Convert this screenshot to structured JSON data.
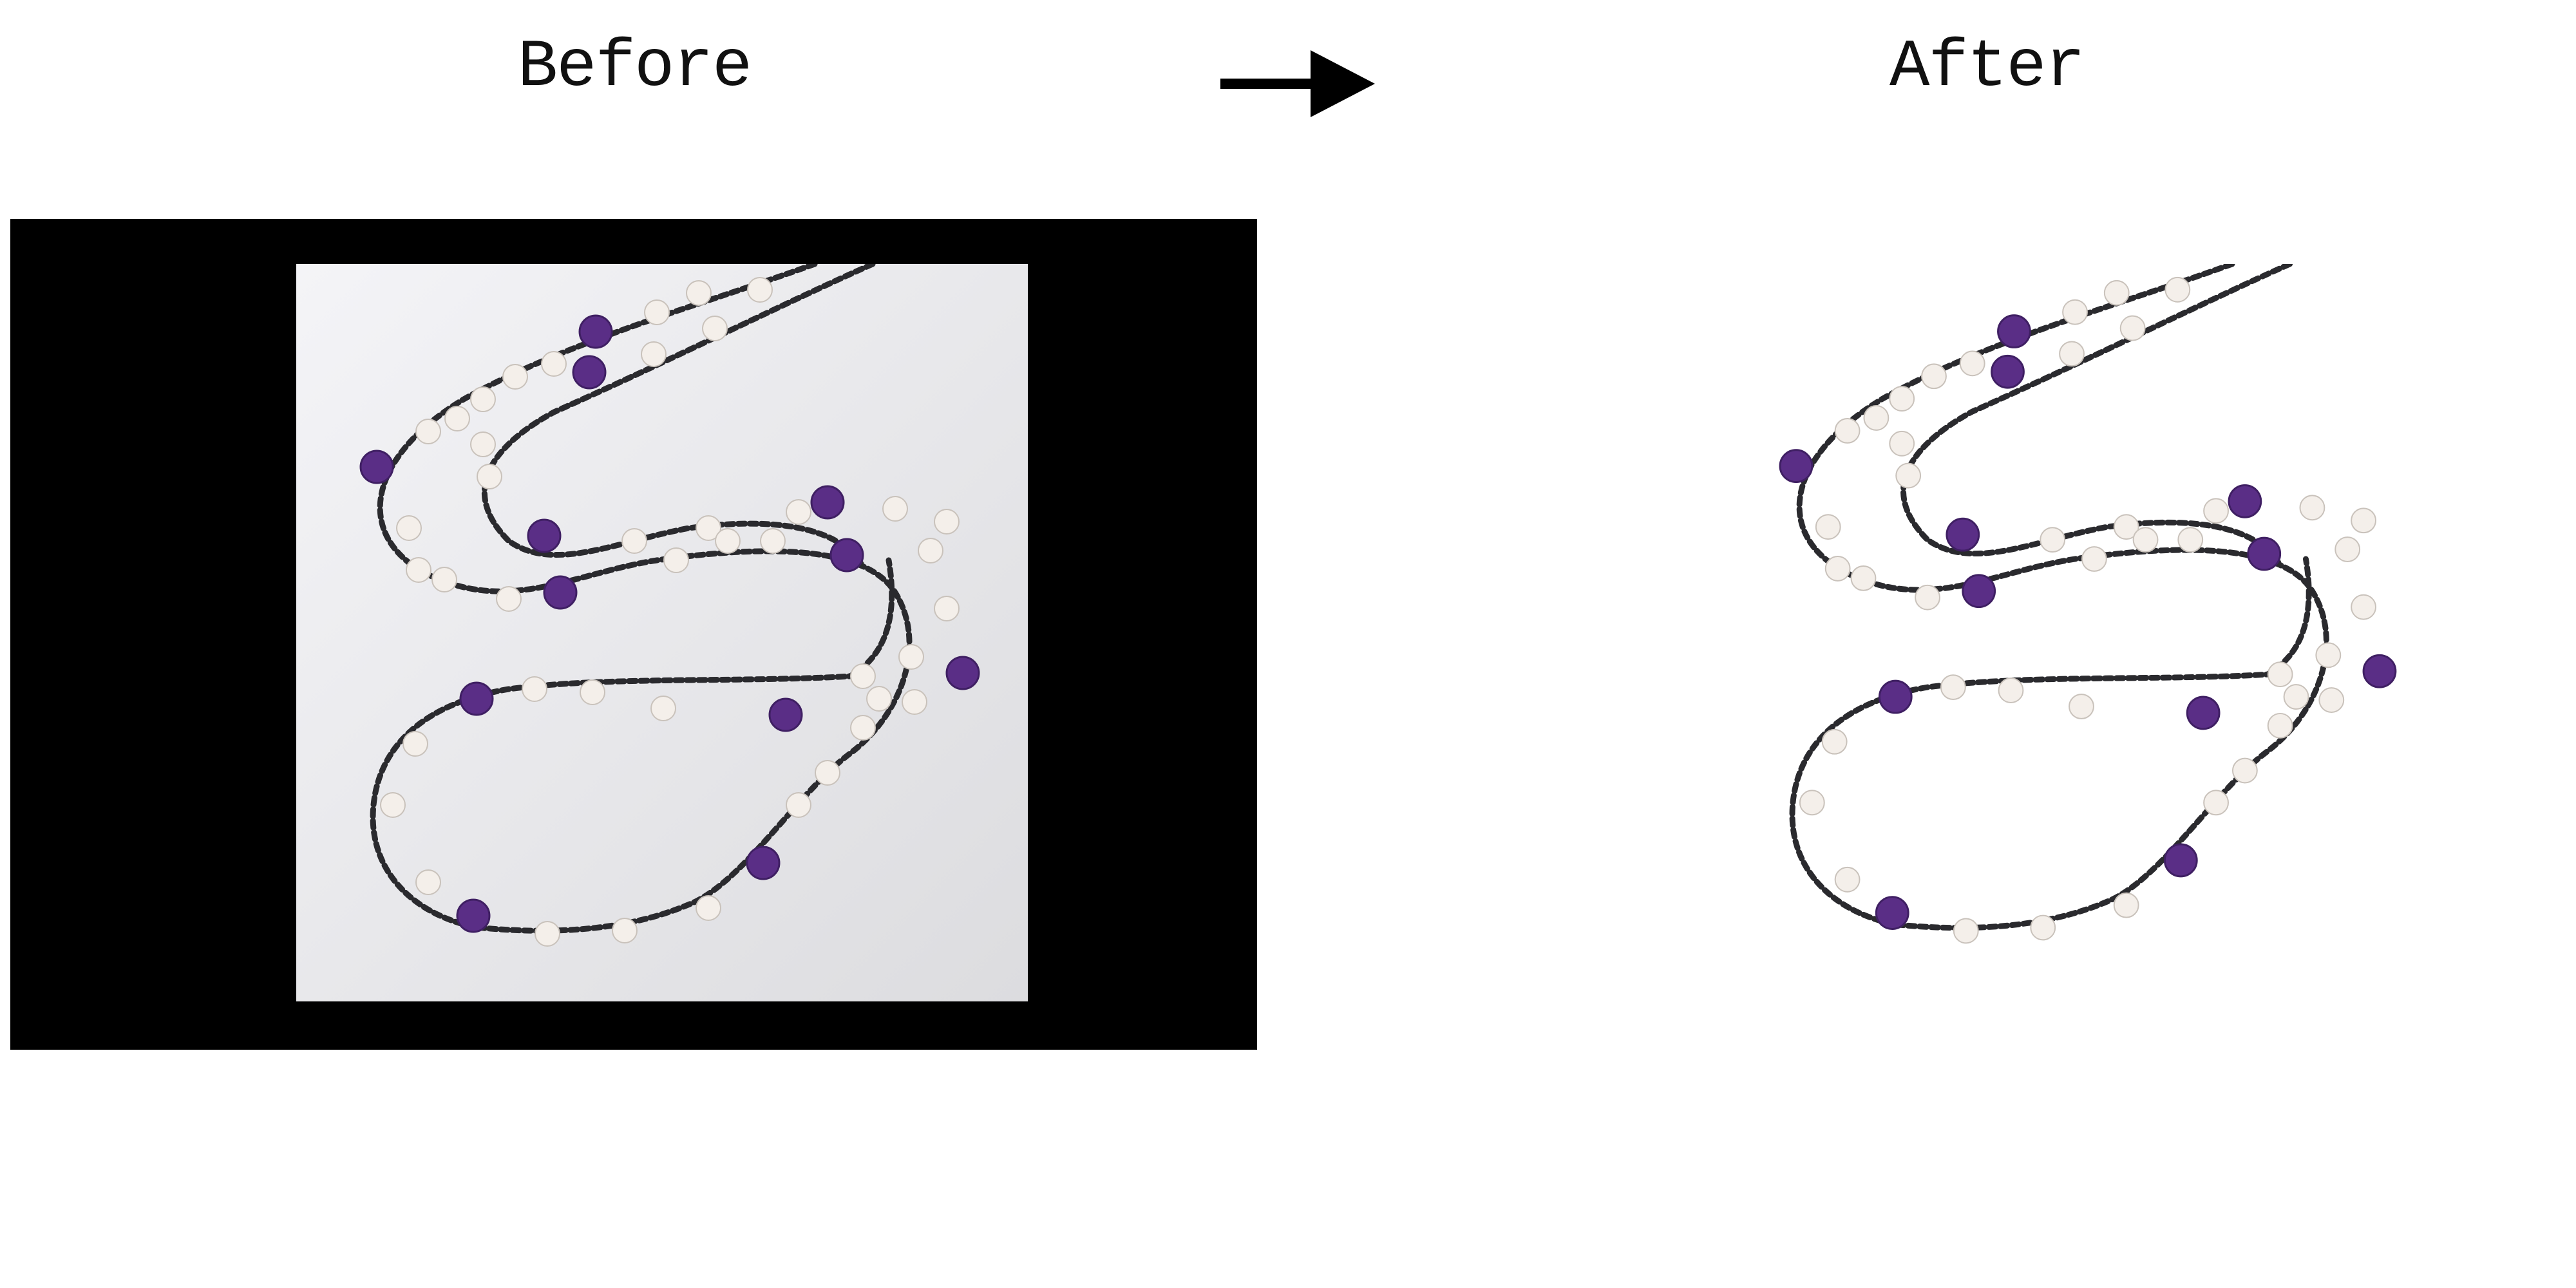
{
  "labels": {
    "before": "Before",
    "after": "After"
  },
  "icons": {
    "arrow": "right-arrow-icon"
  },
  "colors": {
    "canvas": "#ffffff",
    "frame": "#000000",
    "studio_backdrop": "#ececee",
    "amethyst": "#5a2e86",
    "pearl": "#f4efea",
    "spinel": "#1f1f24"
  }
}
